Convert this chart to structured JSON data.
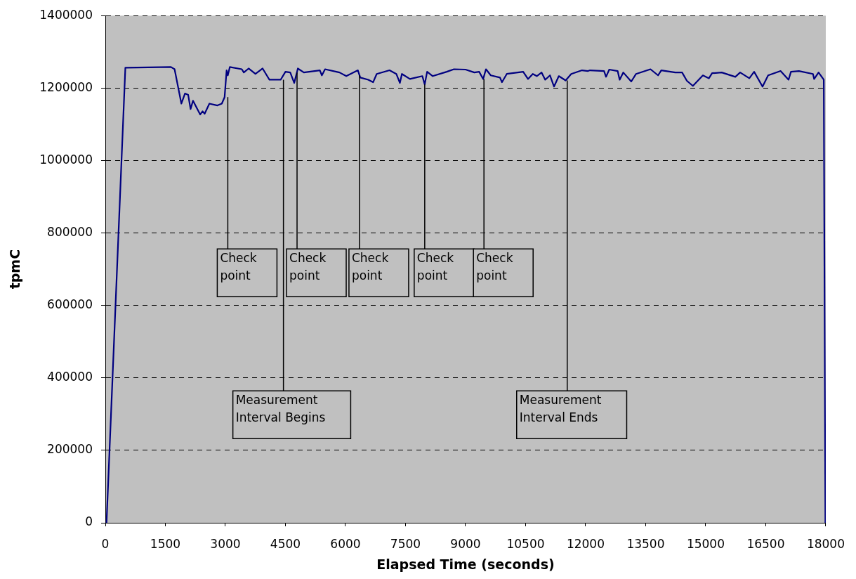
{
  "chart_data": {
    "type": "line",
    "xlabel": "Elapsed Time (seconds)",
    "ylabel": "tpmC",
    "x": [
      30,
      500,
      1640,
      1730,
      1900,
      1990,
      2070,
      2130,
      2190,
      2370,
      2430,
      2480,
      2600,
      2800,
      2910,
      2980,
      3030,
      3060,
      3110,
      3410,
      3460,
      3580,
      3750,
      3930,
      4100,
      4380,
      4500,
      4620,
      4720,
      4810,
      4960,
      5360,
      5410,
      5490,
      5850,
      6020,
      6310,
      6370,
      6570,
      6690,
      6780,
      7100,
      7270,
      7360,
      7410,
      7610,
      7920,
      7980,
      8040,
      8180,
      8530,
      8710,
      9000,
      9220,
      9340,
      9440,
      9510,
      9630,
      9860,
      9910,
      10030,
      10440,
      10560,
      10680,
      10780,
      10900,
      10990,
      11110,
      11210,
      11330,
      11500,
      11640,
      11910,
      12060,
      12110,
      12460,
      12510,
      12590,
      12800,
      12850,
      12940,
      13140,
      13260,
      13620,
      13810,
      13890,
      14240,
      14410,
      14530,
      14680,
      14930,
      15080,
      15160,
      15400,
      15740,
      15860,
      16090,
      16210,
      16420,
      16560,
      16870,
      17070,
      17130,
      17330,
      17680,
      17710,
      17820,
      17950,
      17990
    ],
    "series": [
      {
        "color": "#000080",
        "values": [
          0,
          1256000,
          1258000,
          1252000,
          1157000,
          1185000,
          1181000,
          1142000,
          1165000,
          1127000,
          1136000,
          1129000,
          1157000,
          1152000,
          1157000,
          1175000,
          1249000,
          1235000,
          1258000,
          1252000,
          1243000,
          1254000,
          1239000,
          1254000,
          1223000,
          1223000,
          1245000,
          1243000,
          1214000,
          1254000,
          1243000,
          1249000,
          1235000,
          1252000,
          1243000,
          1233000,
          1249000,
          1229000,
          1223000,
          1216000,
          1239000,
          1249000,
          1239000,
          1214000,
          1239000,
          1225000,
          1233000,
          1210000,
          1245000,
          1233000,
          1245000,
          1252000,
          1251000,
          1243000,
          1245000,
          1225000,
          1252000,
          1235000,
          1229000,
          1216000,
          1239000,
          1245000,
          1225000,
          1239000,
          1233000,
          1243000,
          1223000,
          1235000,
          1204000,
          1233000,
          1221000,
          1239000,
          1249000,
          1247000,
          1249000,
          1247000,
          1231000,
          1251000,
          1247000,
          1223000,
          1243000,
          1218000,
          1239000,
          1252000,
          1235000,
          1249000,
          1243000,
          1243000,
          1220000,
          1206000,
          1235000,
          1227000,
          1241000,
          1243000,
          1231000,
          1243000,
          1227000,
          1245000,
          1204000,
          1235000,
          1247000,
          1223000,
          1245000,
          1247000,
          1239000,
          1225000,
          1243000,
          1223000,
          0
        ]
      }
    ],
    "xlim": [
      0,
      18000
    ],
    "xticks": [
      0,
      1500,
      3000,
      4500,
      6000,
      7500,
      9000,
      10500,
      12000,
      13500,
      15000,
      16500,
      18000
    ],
    "ylim": [
      0,
      1400000
    ],
    "yticks": [
      0,
      200000,
      400000,
      600000,
      800000,
      1000000,
      1200000,
      1400000
    ],
    "grid": "y",
    "legend": false,
    "marker": "none",
    "line_style": "solid",
    "annotations": [
      {
        "text": "Check point",
        "x": 3060,
        "y": 1175000
      },
      {
        "text": "Measurement Interval Begins",
        "x": 4450,
        "y": 1223000
      },
      {
        "text": "Check point",
        "x": 4790,
        "y": 1243000
      },
      {
        "text": "Check point",
        "x": 6350,
        "y": 1235000
      },
      {
        "text": "Check point",
        "x": 7980,
        "y": 1210000
      },
      {
        "text": "Check point",
        "x": 9460,
        "y": 1225000
      },
      {
        "text": "Measurement Interval Ends",
        "x": 11540,
        "y": 1221000
      }
    ]
  }
}
